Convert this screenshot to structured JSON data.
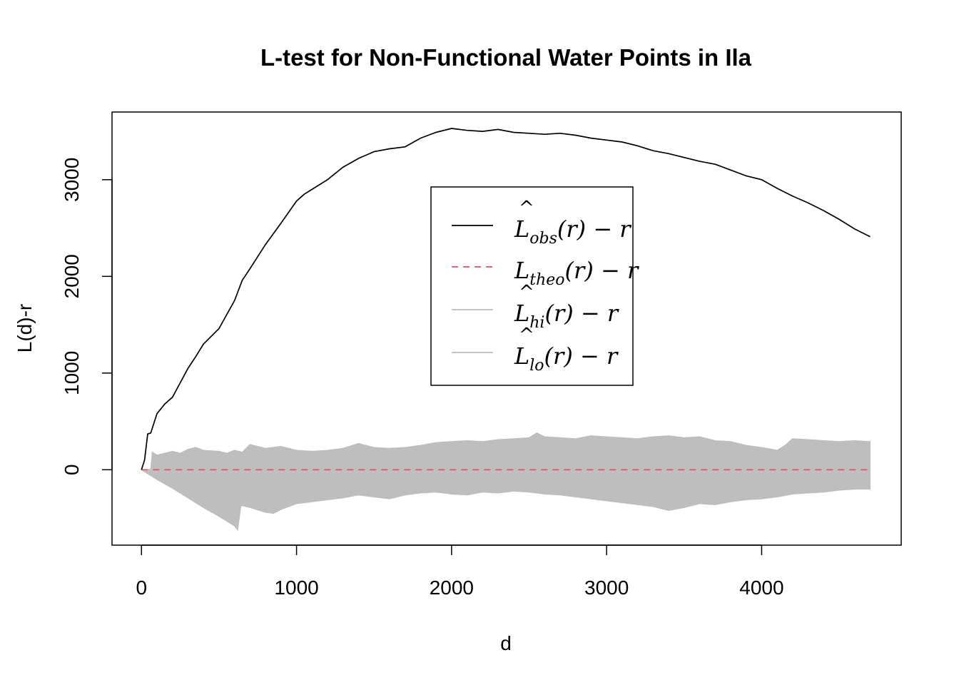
{
  "chart_data": {
    "type": "line",
    "title": "L-test for Non-Functional Water Points in Ila",
    "xlabel": "d",
    "ylabel": "L(d)-r",
    "xlim": [
      -190,
      4900
    ],
    "ylim": [
      -780,
      3700
    ],
    "x_ticks": [
      0,
      1000,
      2000,
      3000,
      4000
    ],
    "x_tick_labels": [
      "0",
      "1000",
      "2000",
      "3000",
      "4000"
    ],
    "y_ticks": [
      0,
      1000,
      2000,
      3000
    ],
    "y_tick_labels": [
      "0",
      "1000",
      "2000",
      "3000"
    ],
    "grid": false,
    "legend_position": "top-center",
    "series": [
      {
        "key": "obs",
        "legend": {
          "base": "L",
          "hat": true,
          "sub": "obs",
          "suffix": "(r) − r"
        },
        "color": "#000000",
        "dash": "solid",
        "x": [
          0,
          20,
          40,
          60,
          100,
          150,
          200,
          250,
          300,
          350,
          400,
          500,
          600,
          650,
          700,
          800,
          900,
          1000,
          1050,
          1100,
          1200,
          1300,
          1400,
          1500,
          1600,
          1700,
          1800,
          1900,
          2000,
          2100,
          2200,
          2300,
          2400,
          2500,
          2600,
          2700,
          2800,
          2900,
          3000,
          3100,
          3200,
          3300,
          3400,
          3500,
          3600,
          3700,
          3800,
          3900,
          4000,
          4100,
          4200,
          4300,
          4400,
          4500,
          4600,
          4700
        ],
        "y": [
          0,
          100,
          370,
          380,
          580,
          680,
          750,
          900,
          1050,
          1170,
          1300,
          1460,
          1750,
          1960,
          2080,
          2330,
          2550,
          2780,
          2850,
          2900,
          3000,
          3130,
          3220,
          3290,
          3320,
          3340,
          3430,
          3490,
          3530,
          3510,
          3500,
          3520,
          3490,
          3480,
          3470,
          3480,
          3460,
          3430,
          3410,
          3390,
          3350,
          3300,
          3270,
          3230,
          3190,
          3160,
          3100,
          3040,
          3000,
          2910,
          2830,
          2760,
          2680,
          2590,
          2490,
          2410
        ]
      },
      {
        "key": "theo",
        "legend": {
          "base": "L",
          "hat": false,
          "sub": "theo",
          "suffix": "(r) − r"
        },
        "color": "#DF536B",
        "dash": "dashed",
        "x": [
          0,
          4700
        ],
        "y": [
          0,
          0
        ]
      },
      {
        "key": "hi",
        "legend": {
          "base": "L",
          "hat": true,
          "sub": "hi",
          "suffix": "(r) − r"
        },
        "color": "#BEBEBE",
        "dash": "solid",
        "x": [
          0,
          60,
          70,
          100,
          200,
          250,
          300,
          350,
          400,
          500,
          550,
          600,
          650,
          700,
          800,
          900,
          1000,
          1100,
          1200,
          1300,
          1400,
          1500,
          1600,
          1700,
          1800,
          1900,
          2000,
          2100,
          2200,
          2300,
          2400,
          2500,
          2550,
          2600,
          2700,
          2800,
          2900,
          3000,
          3100,
          3200,
          3300,
          3400,
          3500,
          3600,
          3700,
          3800,
          3900,
          4000,
          4100,
          4150,
          4200,
          4300,
          4400,
          4500,
          4600,
          4700
        ],
        "y": [
          0,
          0,
          180,
          150,
          190,
          170,
          210,
          230,
          200,
          190,
          170,
          200,
          180,
          260,
          220,
          240,
          200,
          190,
          200,
          220,
          270,
          230,
          220,
          230,
          250,
          280,
          290,
          300,
          290,
          310,
          320,
          330,
          380,
          340,
          330,
          320,
          350,
          340,
          330,
          320,
          340,
          350,
          330,
          340,
          300,
          290,
          250,
          230,
          200,
          250,
          320,
          310,
          300,
          290,
          300,
          290
        ]
      },
      {
        "key": "lo",
        "legend": {
          "base": "L",
          "hat": true,
          "sub": "lo",
          "suffix": "(r) − r"
        },
        "color": "#BEBEBE",
        "dash": "solid",
        "x": [
          0,
          100,
          200,
          300,
          400,
          500,
          600,
          620,
          640,
          650,
          700,
          800,
          850,
          900,
          1000,
          1100,
          1200,
          1300,
          1400,
          1500,
          1600,
          1700,
          1800,
          1900,
          2000,
          2100,
          2200,
          2300,
          2400,
          2500,
          2600,
          2700,
          2800,
          2900,
          3000,
          3100,
          3200,
          3300,
          3400,
          3500,
          3600,
          3700,
          3800,
          3900,
          4000,
          4100,
          4200,
          4300,
          4400,
          4500,
          4600,
          4700
        ],
        "y": [
          0,
          -100,
          -190,
          -290,
          -390,
          -480,
          -580,
          -620,
          -380,
          -370,
          -390,
          -440,
          -450,
          -410,
          -350,
          -330,
          -310,
          -290,
          -260,
          -280,
          -300,
          -260,
          -240,
          -230,
          -250,
          -260,
          -230,
          -240,
          -220,
          -230,
          -250,
          -260,
          -280,
          -300,
          -320,
          -340,
          -360,
          -380,
          -420,
          -390,
          -350,
          -360,
          -330,
          -310,
          -300,
          -280,
          -250,
          -240,
          -230,
          -210,
          -200,
          -200
        ]
      }
    ]
  }
}
